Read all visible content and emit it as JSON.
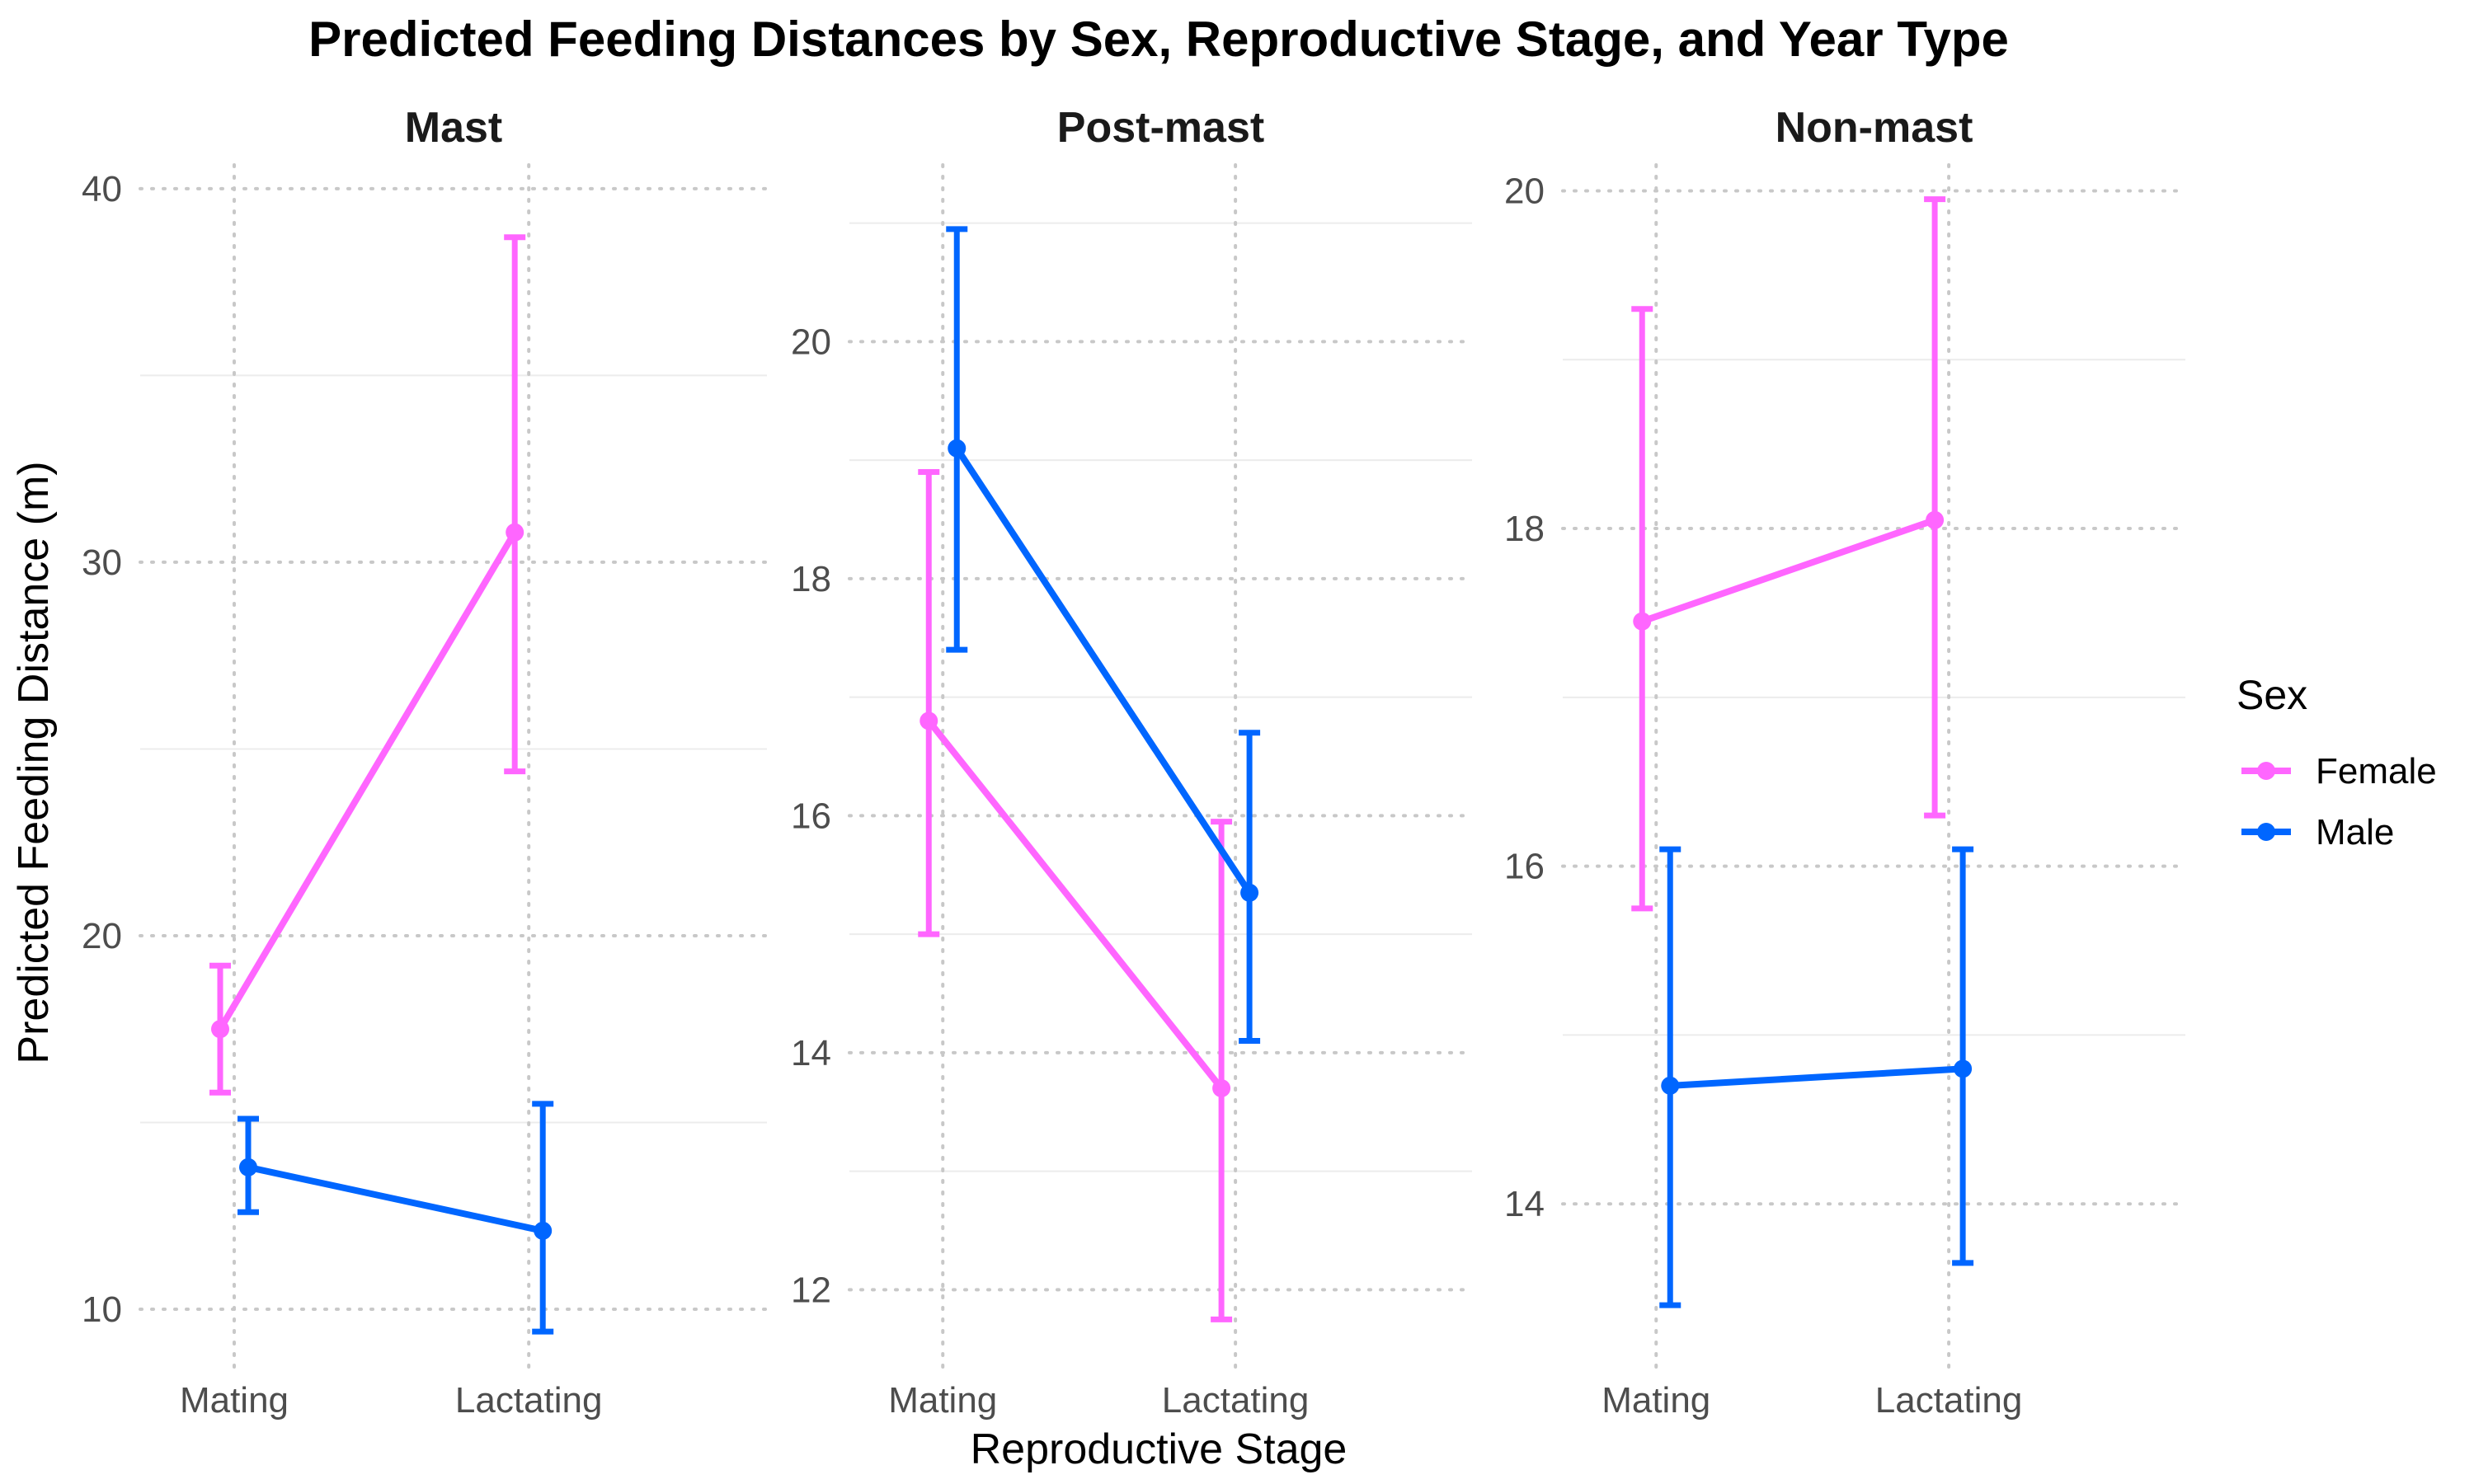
{
  "chart_data": {
    "type": "line",
    "title": "Predicted Feeding Distances by Sex, Reproductive Stage, and Year Type",
    "xlabel": "Reproductive Stage",
    "ylabel": "Predicted Feeding Distance (m)",
    "categories": [
      "Mating",
      "Lactating"
    ],
    "legend": {
      "title": "Sex",
      "placement": "right",
      "entries": [
        {
          "name": "Female",
          "color": "#FF66FF"
        },
        {
          "name": "Male",
          "color": "#0066FF"
        }
      ]
    },
    "panels": [
      {
        "name": "Mast",
        "ylim": [
          8.3,
          41.3
        ],
        "yticks": [
          10,
          20,
          30,
          40
        ],
        "yticks_minor": [
          15,
          25,
          35
        ],
        "series": [
          {
            "name": "Female",
            "values": [
              17.5,
              30.8
            ],
            "lower": [
              15.8,
              24.4
            ],
            "upper": [
              19.2,
              38.7
            ]
          },
          {
            "name": "Male",
            "values": [
              13.8,
              12.1
            ],
            "lower": [
              12.6,
              9.4
            ],
            "upper": [
              15.1,
              15.5
            ]
          }
        ]
      },
      {
        "name": "Post-mast",
        "ylim": [
          11.3,
          21.7
        ],
        "yticks": [
          12,
          14,
          16,
          18,
          20
        ],
        "yticks_minor": [
          13,
          15,
          17,
          19,
          21
        ],
        "series": [
          {
            "name": "Female",
            "values": [
              16.8,
              13.7
            ],
            "lower": [
              15.0,
              11.75
            ],
            "upper": [
              18.9,
              15.95
            ]
          },
          {
            "name": "Male",
            "values": [
              19.1,
              15.35
            ],
            "lower": [
              17.4,
              14.1
            ],
            "upper": [
              20.95,
              16.7
            ]
          }
        ]
      },
      {
        "name": "Non-mast",
        "ylim": [
          13.0,
          20.3
        ],
        "yticks": [
          14,
          16,
          18,
          20
        ],
        "yticks_minor": [
          15,
          17,
          19
        ],
        "series": [
          {
            "name": "Female",
            "values": [
              17.45,
              18.05
            ],
            "lower": [
              15.75,
              16.3
            ],
            "upper": [
              19.3,
              19.95
            ]
          },
          {
            "name": "Male",
            "values": [
              14.7,
              14.8
            ],
            "lower": [
              13.4,
              13.65
            ],
            "upper": [
              16.1,
              16.1
            ]
          }
        ]
      }
    ]
  }
}
